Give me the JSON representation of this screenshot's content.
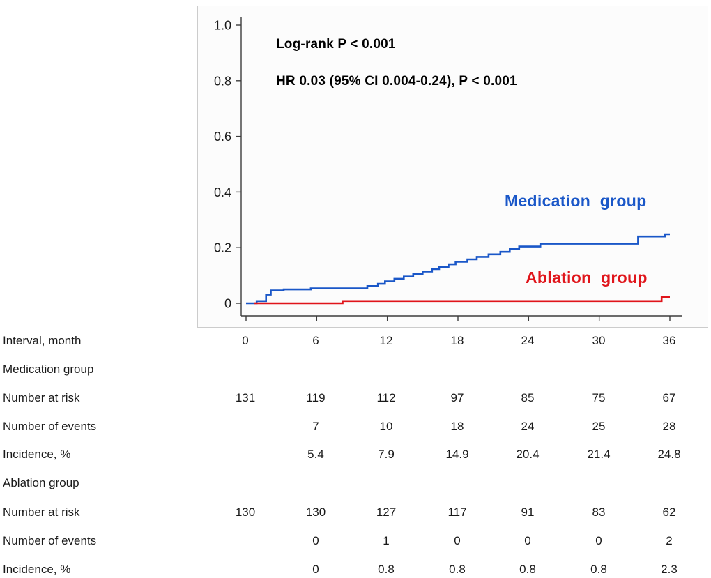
{
  "chart_data": {
    "type": "line",
    "subtype": "kaplan-meier-step",
    "title": "",
    "xlabel": "Interval, month",
    "ylabel": "",
    "xlim": [
      0,
      36
    ],
    "ylim": [
      0,
      1.0
    ],
    "x_ticks": [
      0,
      6,
      12,
      18,
      24,
      30,
      36
    ],
    "y_ticks": [
      0,
      0.2,
      0.4,
      0.6,
      0.8,
      1.0
    ],
    "y_tick_labels": [
      "0",
      "0.2",
      "0.4",
      "0.6",
      "0.8",
      "1.0"
    ],
    "grid": false,
    "legend_position": "inline-labels",
    "annotations": [
      "Log-rank P < 0.001",
      "HR 0.03 (95% CI 0.004-0.24), P < 0.001"
    ],
    "series": [
      {
        "name": "Medication group",
        "color": "#1a57c8",
        "step_points": [
          [
            0,
            0
          ],
          [
            0.9,
            0.008
          ],
          [
            1.7,
            0.031
          ],
          [
            2.1,
            0.046
          ],
          [
            3.2,
            0.05
          ],
          [
            5.5,
            0.054
          ],
          [
            10.3,
            0.062
          ],
          [
            11.2,
            0.07
          ],
          [
            11.8,
            0.079
          ],
          [
            12.6,
            0.088
          ],
          [
            13.4,
            0.096
          ],
          [
            14.2,
            0.105
          ],
          [
            15,
            0.114
          ],
          [
            15.8,
            0.123
          ],
          [
            16.4,
            0.131
          ],
          [
            17.2,
            0.14
          ],
          [
            17.8,
            0.149
          ],
          [
            18.8,
            0.158
          ],
          [
            19.6,
            0.167
          ],
          [
            20.6,
            0.176
          ],
          [
            21.6,
            0.185
          ],
          [
            22.4,
            0.195
          ],
          [
            23.2,
            0.204
          ],
          [
            25,
            0.214
          ],
          [
            33.3,
            0.24
          ],
          [
            35.6,
            0.248
          ]
        ]
      },
      {
        "name": "Ablation group",
        "color": "#e0151b",
        "step_points": [
          [
            0.7,
            0
          ],
          [
            8.2,
            0.008
          ],
          [
            35.3,
            0.023
          ]
        ]
      }
    ]
  },
  "table": {
    "rows": [
      {
        "label": "Interval, month",
        "values": [
          "0",
          "6",
          "12",
          "18",
          "24",
          "30",
          "36"
        ]
      },
      {
        "label": "Medication group",
        "values": []
      },
      {
        "label": "Number at risk",
        "values": [
          "131",
          "119",
          "112",
          "97",
          "85",
          "75",
          "67"
        ]
      },
      {
        "label": "Number of events",
        "values": [
          "",
          "7",
          "10",
          "18",
          "24",
          "25",
          "28"
        ]
      },
      {
        "label": "Incidence, %",
        "values": [
          "",
          "5.4",
          "7.9",
          "14.9",
          "20.4",
          "21.4",
          "24.8"
        ]
      },
      {
        "label": "Ablation group",
        "values": []
      },
      {
        "label": "Number at risk",
        "values": [
          "130",
          "130",
          "127",
          "117",
          "91",
          "83",
          "62"
        ]
      },
      {
        "label": "Number of events",
        "values": [
          "",
          "0",
          "1",
          "0",
          "0",
          "0",
          "2"
        ]
      },
      {
        "label": "Incidence, %",
        "values": [
          "",
          "0",
          "0.8",
          "0.8",
          "0.8",
          "0.8",
          "2.3"
        ]
      }
    ]
  }
}
